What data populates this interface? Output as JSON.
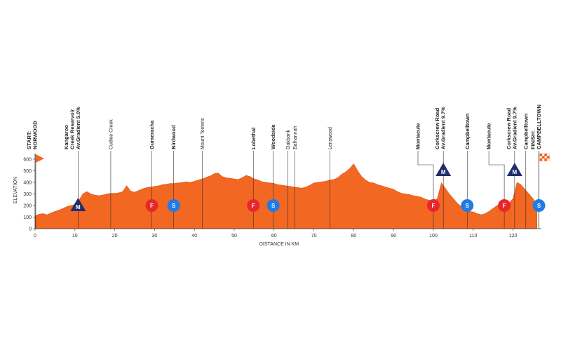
{
  "chart_data": {
    "type": "area",
    "xlabel": "DISTANCE IN KM",
    "ylabel": "ELEVATION",
    "xlim": [
      0,
      127
    ],
    "ylim": [
      0,
      650
    ],
    "x_ticks": [
      0,
      10,
      20,
      30,
      40,
      50,
      60,
      70,
      80,
      90,
      100,
      110,
      120
    ],
    "y_ticks": [
      0,
      100,
      200,
      300,
      400,
      500,
      600
    ],
    "grid": false,
    "colors": {
      "fill": "#f26722",
      "line": "#d9531b",
      "axis": "#333333",
      "kom": "#1f2d6b",
      "feed": "#e8262c",
      "sprint": "#1e7be8",
      "flag": "#f26722"
    },
    "profile": {
      "x": [
        0,
        1,
        2,
        3,
        4,
        5,
        6,
        7,
        8,
        9,
        10,
        11,
        12,
        13,
        14,
        15,
        16,
        17,
        18,
        19,
        20,
        21,
        22,
        23,
        24,
        25,
        26,
        27,
        28,
        29,
        30,
        31,
        32,
        33,
        34,
        35,
        36,
        37,
        38,
        39,
        40,
        41,
        42,
        43,
        44,
        45,
        46,
        47,
        48,
        49,
        50,
        51,
        52,
        53,
        54,
        55,
        56,
        57,
        58,
        59,
        60,
        61,
        62,
        63,
        64,
        65,
        66,
        67,
        68,
        69,
        70,
        71,
        72,
        73,
        74,
        75,
        76,
        77,
        78,
        79,
        80,
        81,
        82,
        83,
        84,
        85,
        86,
        87,
        88,
        89,
        90,
        91,
        92,
        93,
        94,
        95,
        96,
        97,
        98,
        99,
        100,
        101,
        102,
        103,
        104,
        105,
        106,
        107,
        108,
        109,
        110,
        111,
        112,
        113,
        114,
        115,
        116,
        117,
        118,
        119,
        120,
        121,
        122,
        123,
        124,
        125,
        126
      ],
      "y": [
        110,
        125,
        130,
        120,
        135,
        150,
        160,
        175,
        190,
        200,
        210,
        245,
        300,
        320,
        300,
        290,
        285,
        290,
        300,
        305,
        305,
        310,
        320,
        370,
        325,
        315,
        330,
        345,
        355,
        360,
        365,
        370,
        380,
        385,
        390,
        390,
        395,
        400,
        405,
        400,
        410,
        420,
        430,
        445,
        455,
        475,
        480,
        450,
        440,
        435,
        430,
        425,
        440,
        460,
        450,
        430,
        420,
        405,
        400,
        395,
        390,
        380,
        375,
        370,
        365,
        360,
        355,
        350,
        360,
        375,
        395,
        400,
        405,
        410,
        420,
        425,
        440,
        470,
        490,
        520,
        560,
        500,
        450,
        420,
        400,
        395,
        380,
        370,
        360,
        350,
        340,
        320,
        305,
        300,
        295,
        285,
        280,
        270,
        255,
        245,
        240,
        260,
        395,
        350,
        300,
        260,
        220,
        190,
        170,
        150,
        145,
        130,
        120,
        130,
        150,
        175,
        200,
        215,
        210,
        220,
        260,
        400,
        380,
        340,
        300,
        260,
        200
      ]
    },
    "markers": [
      {
        "km": 0,
        "label": "START:\nNORWOOD",
        "bold": true,
        "type": "flag"
      },
      {
        "km": 10.8,
        "label": "Kangaroo\nCreek Reservoir\nAv.Gradient 5.0%",
        "bold": true,
        "type": "kom",
        "symbol": "M"
      },
      {
        "km": 19,
        "label": "Cudlee Creek",
        "bold": false,
        "type": "none"
      },
      {
        "km": 29.3,
        "label": "Gumeracha",
        "bold": true,
        "type": "feed",
        "symbol": "F"
      },
      {
        "km": 34.8,
        "label": "Birdwood",
        "bold": true,
        "type": "sprint",
        "symbol": "S"
      },
      {
        "km": 42,
        "label": "Mount Torrens",
        "bold": false,
        "type": "none"
      },
      {
        "km": 54.8,
        "label": "Lobethal",
        "bold": true,
        "type": "feed",
        "symbol": "F"
      },
      {
        "km": 59.8,
        "label": "Woodside",
        "bold": true,
        "type": "sprint",
        "symbol": "S"
      },
      {
        "km": 63.5,
        "label": "Oakbank",
        "bold": false,
        "type": "none"
      },
      {
        "km": 65.2,
        "label": "Balhannah",
        "bold": false,
        "type": "none"
      },
      {
        "km": 74,
        "label": "Lenswood",
        "bold": false,
        "type": "none"
      },
      {
        "km": 100,
        "label": "Montacute",
        "bold": true,
        "type": "feed",
        "symbol": "F",
        "offset": "left"
      },
      {
        "km": 102.5,
        "label": "Corkscrew Road\nAv.Gradient 9.7%",
        "bold": true,
        "type": "kom",
        "symbol": "M"
      },
      {
        "km": 108.5,
        "label": "Campbelltown",
        "bold": true,
        "type": "sprint",
        "symbol": "S"
      },
      {
        "km": 117.8,
        "label": "Montacute",
        "bold": true,
        "type": "feed",
        "symbol": "F",
        "offset": "left"
      },
      {
        "km": 120.4,
        "label": "Corkscrew Road\nAv.Gradient 9.7%",
        "bold": true,
        "type": "kom",
        "symbol": "M"
      },
      {
        "km": 123.2,
        "label": "Campbelltown",
        "bold": true,
        "type": "none"
      },
      {
        "km": 126.5,
        "label": "FINISH:\nCAMPBELLTOWN",
        "bold": true,
        "type": "finish",
        "symbol": "S"
      }
    ]
  }
}
